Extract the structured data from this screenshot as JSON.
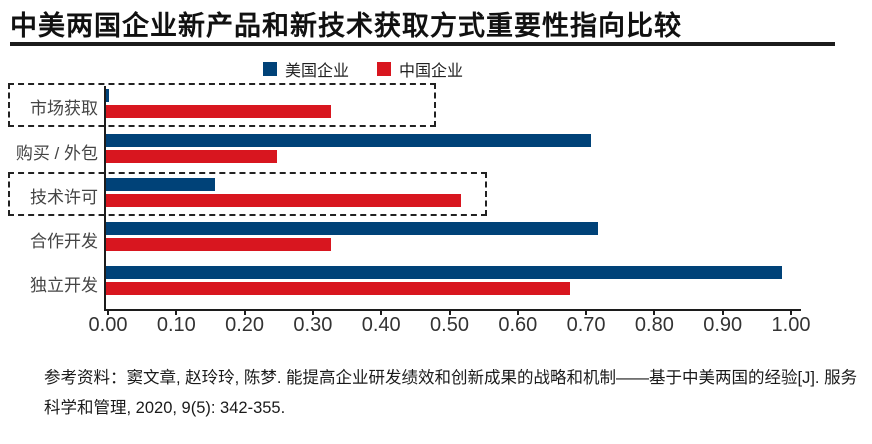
{
  "title": "中美两国企业新产品和新技术获取方式重要性指向比较",
  "chart_data": {
    "type": "bar",
    "orientation": "horizontal",
    "title": "中美两国企业新产品和新技术获取方式重要性指向比较",
    "categories": [
      "市场获取",
      "购买 / 外包",
      "技术许可",
      "合作开发",
      "独立开发"
    ],
    "series": [
      {
        "name": "美国企业",
        "color": "#004278",
        "values": [
          0.005,
          0.71,
          0.16,
          0.72,
          0.99
        ]
      },
      {
        "name": "中国企业",
        "color": "#d8161f",
        "values": [
          0.33,
          0.25,
          0.52,
          0.33,
          0.68
        ]
      }
    ],
    "xlim": [
      0,
      1
    ],
    "xticks": [
      "0.00",
      "0.10",
      "0.20",
      "0.30",
      "0.40",
      "0.50",
      "0.60",
      "0.70",
      "0.80",
      "0.90",
      "1.00"
    ],
    "grid": false,
    "legend_position": "top-center",
    "highlighted_categories": [
      "市场获取",
      "技术许可"
    ],
    "highlight_style": "dashed-rectangle"
  },
  "legend": {
    "items": [
      {
        "label": "美国企业",
        "color": "#004278"
      },
      {
        "label": "中国企业",
        "color": "#d8161f"
      }
    ]
  },
  "footer": {
    "reference": "参考资料：窦文章, 赵玲玲, 陈梦. 能提高企业研发绩效和创新成果的战略和机制——基于中美两国的经验[J]. 服务科学和管理, 2020, 9(5): 342-355."
  }
}
